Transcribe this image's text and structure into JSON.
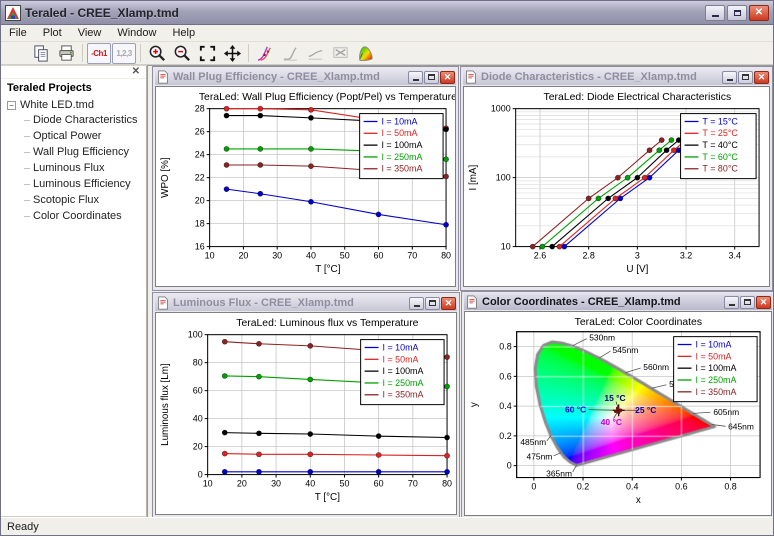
{
  "app": {
    "title": "Teraled - CREE_Xlamp.tmd",
    "menu": [
      "File",
      "Plot",
      "View",
      "Window",
      "Help"
    ],
    "status": "Ready"
  },
  "toolbar": {
    "channel_label": "-Ch1",
    "values_label": "1,2,3",
    "buttons": [
      "open",
      "copy",
      "print",
      "channel",
      "values",
      "zoom-in",
      "zoom-out",
      "zoom-extents",
      "pan",
      "plot-curves",
      "plot-diode",
      "plot-line",
      "plot-clear",
      "color-diagram"
    ]
  },
  "sidebar": {
    "header": "Teraled Projects",
    "root": "White LED.tmd",
    "items": [
      "Diode Characteristics",
      "Optical Power",
      "Wall Plug Efficiency",
      "Luminous Flux",
      "Luminous Efficiency",
      "Scotopic Flux",
      "Color Coordinates"
    ]
  },
  "windows": [
    {
      "title": "Wall Plug Efficiency - CREE_Xlamp.tmd"
    },
    {
      "title": "Diode Characteristics - CREE_Xlamp.tmd"
    },
    {
      "title": "Luminous Flux - CREE_Xlamp.tmd"
    },
    {
      "title": "Color Coordinates - CREE_Xlamp.tmd"
    }
  ],
  "chart_data": [
    {
      "id": "wpe",
      "type": "line",
      "title": "TeraLed: Wall Plug Efficiency (Popt/Pel) vs Temperature",
      "xlabel": "T [°C]",
      "ylabel": "WPO [%]",
      "xlim": [
        10,
        80
      ],
      "ylim": [
        16,
        28
      ],
      "xticks": [
        10,
        20,
        30,
        40,
        50,
        60,
        70,
        80
      ],
      "yticks": [
        16,
        18,
        20,
        22,
        24,
        26,
        28
      ],
      "grid": true,
      "legend_position": "top-right",
      "x": [
        15,
        25,
        40,
        60,
        80
      ],
      "series": [
        {
          "name": "I = 10mA",
          "color": "#0000cc",
          "values": [
            21.0,
            20.6,
            19.9,
            18.8,
            17.9
          ]
        },
        {
          "name": "I = 50mA",
          "color": "#dd2222",
          "values": [
            28.0,
            28.0,
            27.9,
            27.0,
            26.3
          ]
        },
        {
          "name": "I = 100mA",
          "color": "#000000",
          "values": [
            27.4,
            27.4,
            27.2,
            26.9,
            26.2
          ]
        },
        {
          "name": "I = 250mA",
          "color": "#00a000",
          "values": [
            24.5,
            24.5,
            24.5,
            24.3,
            23.6
          ]
        },
        {
          "name": "I = 350mA",
          "color": "#8b2222",
          "values": [
            23.1,
            23.1,
            23.0,
            22.6,
            22.1
          ]
        }
      ]
    },
    {
      "id": "diode",
      "type": "line",
      "yscale": "log",
      "title": "TeraLed: Diode Electrical Characteristics",
      "xlabel": "U [V]",
      "ylabel": "I [mA]",
      "xlim": [
        2.5,
        3.5
      ],
      "ylim": [
        10,
        1000
      ],
      "xticks": [
        2.6,
        2.8,
        3,
        3.2,
        3.4
      ],
      "yticks": [
        10,
        100,
        1000
      ],
      "grid": true,
      "legend_position": "top-right",
      "series": [
        {
          "name": "T = 15°C",
          "color": "#0000cc",
          "x": [
            2.7,
            2.93,
            3.05,
            3.17,
            3.22
          ],
          "y": [
            10,
            50,
            100,
            250,
            350
          ]
        },
        {
          "name": "T = 25°C",
          "color": "#dd2222",
          "x": [
            2.68,
            2.91,
            3.03,
            3.15,
            3.2
          ],
          "y": [
            10,
            50,
            100,
            250,
            350
          ]
        },
        {
          "name": "T = 40°C",
          "color": "#000000",
          "x": [
            2.65,
            2.88,
            3.0,
            3.12,
            3.17
          ],
          "y": [
            10,
            50,
            100,
            250,
            350
          ]
        },
        {
          "name": "T = 60°C",
          "color": "#00a000",
          "x": [
            2.61,
            2.84,
            2.96,
            3.09,
            3.14
          ],
          "y": [
            10,
            50,
            100,
            250,
            350
          ]
        },
        {
          "name": "T = 80°C",
          "color": "#8b2222",
          "x": [
            2.57,
            2.8,
            2.92,
            3.05,
            3.1
          ],
          "y": [
            10,
            50,
            100,
            250,
            350
          ]
        }
      ]
    },
    {
      "id": "flux",
      "type": "line",
      "title": "TeraLed: Luminous flux vs Temperature",
      "xlabel": "T [°C]",
      "ylabel": "Luminous flux [Lm]",
      "xlim": [
        10,
        80
      ],
      "ylim": [
        0,
        100
      ],
      "xticks": [
        10,
        20,
        30,
        40,
        50,
        60,
        70,
        80
      ],
      "yticks": [
        0,
        20,
        40,
        60,
        80,
        100
      ],
      "grid": true,
      "legend_position": "top-right",
      "x": [
        15,
        25,
        40,
        60,
        80
      ],
      "series": [
        {
          "name": "I = 10mA",
          "color": "#0000cc",
          "values": [
            2,
            2,
            2,
            2,
            2
          ]
        },
        {
          "name": "I = 50mA",
          "color": "#dd2222",
          "values": [
            15,
            14.5,
            14.5,
            14,
            13.5
          ]
        },
        {
          "name": "I = 100mA",
          "color": "#000000",
          "values": [
            30,
            29.5,
            29,
            27.5,
            26.5
          ]
        },
        {
          "name": "I = 250mA",
          "color": "#00a000",
          "values": [
            70.5,
            70,
            68,
            65.5,
            63
          ]
        },
        {
          "name": "I = 350mA",
          "color": "#8b2222",
          "values": [
            95,
            93.5,
            92,
            88.5,
            84
          ]
        }
      ]
    },
    {
      "id": "color",
      "type": "cie",
      "title": "TeraLed: Color Coordinates",
      "xlabel": "x",
      "ylabel": "y",
      "xlim": [
        -0.07,
        0.92
      ],
      "ylim": [
        -0.08,
        0.9
      ],
      "xticks": [
        0,
        0.2,
        0.4,
        0.6,
        0.8
      ],
      "yticks": [
        0,
        0.2,
        0.4,
        0.6,
        0.8
      ],
      "grid": true,
      "legend_position": "top-right",
      "point": {
        "x": 0.345,
        "y": 0.372
      },
      "temp_labels": [
        {
          "label": "15 °C",
          "x": 0.33,
          "y": 0.455,
          "color": "#000080"
        },
        {
          "label": "60 °C",
          "x": 0.17,
          "y": 0.378,
          "color": "#0000ee"
        },
        {
          "label": "25 °C",
          "x": 0.455,
          "y": 0.372,
          "color": "#0000cc"
        },
        {
          "label": "40 °C",
          "x": 0.315,
          "y": 0.293,
          "color": "#cc00cc"
        }
      ],
      "wavelength_labels": [
        {
          "label": "530nm",
          "x": 0.225,
          "y": 0.862,
          "ax": 0.158,
          "ay": 0.806,
          "ta": "start"
        },
        {
          "label": "545nm",
          "x": 0.32,
          "y": 0.778,
          "ax": 0.266,
          "ay": 0.724,
          "ta": "start"
        },
        {
          "label": "560nm",
          "x": 0.445,
          "y": 0.662,
          "ax": 0.373,
          "ay": 0.625,
          "ta": "start"
        },
        {
          "label": "575nm",
          "x": 0.55,
          "y": 0.548,
          "ax": 0.479,
          "ay": 0.52,
          "ta": "start"
        },
        {
          "label": "605nm",
          "x": 0.73,
          "y": 0.36,
          "ax": 0.648,
          "ay": 0.351,
          "ta": "start"
        },
        {
          "label": "645nm",
          "x": 0.79,
          "y": 0.262,
          "ax": 0.723,
          "ay": 0.277,
          "ta": "start"
        },
        {
          "label": "485nm",
          "x": 0.05,
          "y": 0.16,
          "ax": 0.069,
          "ay": 0.201,
          "ta": "end"
        },
        {
          "label": "475nm",
          "x": 0.075,
          "y": 0.062,
          "ax": 0.11,
          "ay": 0.087,
          "ta": "end"
        },
        {
          "label": "365nm",
          "x": 0.155,
          "y": -0.052,
          "ax": 0.174,
          "ay": 0.005,
          "ta": "end"
        }
      ],
      "legend": [
        {
          "name": "I = 10mA",
          "color": "#0000cc"
        },
        {
          "name": "I = 50mA",
          "color": "#dd2222"
        },
        {
          "name": "I = 100mA",
          "color": "#000000"
        },
        {
          "name": "I = 250mA",
          "color": "#00a000"
        },
        {
          "name": "I = 350mA",
          "color": "#8b2222"
        }
      ],
      "locus": [
        [
          380,
          0.1741,
          0.005
        ],
        [
          420,
          0.1714,
          0.0051
        ],
        [
          440,
          0.1644,
          0.0109
        ],
        [
          460,
          0.144,
          0.0297
        ],
        [
          470,
          0.1241,
          0.0578
        ],
        [
          475,
          0.1096,
          0.0868
        ],
        [
          480,
          0.0913,
          0.1327
        ],
        [
          485,
          0.0687,
          0.2007
        ],
        [
          490,
          0.0454,
          0.295
        ],
        [
          495,
          0.0235,
          0.4127
        ],
        [
          500,
          0.0082,
          0.5384
        ],
        [
          505,
          0.0039,
          0.6548
        ],
        [
          510,
          0.0139,
          0.7502
        ],
        [
          515,
          0.0389,
          0.812
        ],
        [
          520,
          0.0743,
          0.8338
        ],
        [
          525,
          0.1142,
          0.8262
        ],
        [
          530,
          0.1547,
          0.8059
        ],
        [
          535,
          0.1929,
          0.7816
        ],
        [
          540,
          0.2296,
          0.7543
        ],
        [
          545,
          0.2658,
          0.7243
        ],
        [
          550,
          0.3016,
          0.6923
        ],
        [
          555,
          0.3373,
          0.6589
        ],
        [
          560,
          0.3731,
          0.6245
        ],
        [
          565,
          0.4087,
          0.5896
        ],
        [
          570,
          0.4441,
          0.5547
        ],
        [
          575,
          0.4788,
          0.5202
        ],
        [
          580,
          0.5125,
          0.4866
        ],
        [
          585,
          0.5448,
          0.4544
        ],
        [
          590,
          0.5752,
          0.4242
        ],
        [
          595,
          0.6029,
          0.3965
        ],
        [
          600,
          0.627,
          0.3725
        ],
        [
          605,
          0.6482,
          0.3514
        ],
        [
          610,
          0.6658,
          0.334
        ],
        [
          620,
          0.6915,
          0.3083
        ],
        [
          630,
          0.7079,
          0.292
        ],
        [
          645,
          0.7226,
          0.2774
        ],
        [
          680,
          0.7334,
          0.2666
        ],
        [
          700,
          0.7347,
          0.2653
        ]
      ]
    }
  ]
}
